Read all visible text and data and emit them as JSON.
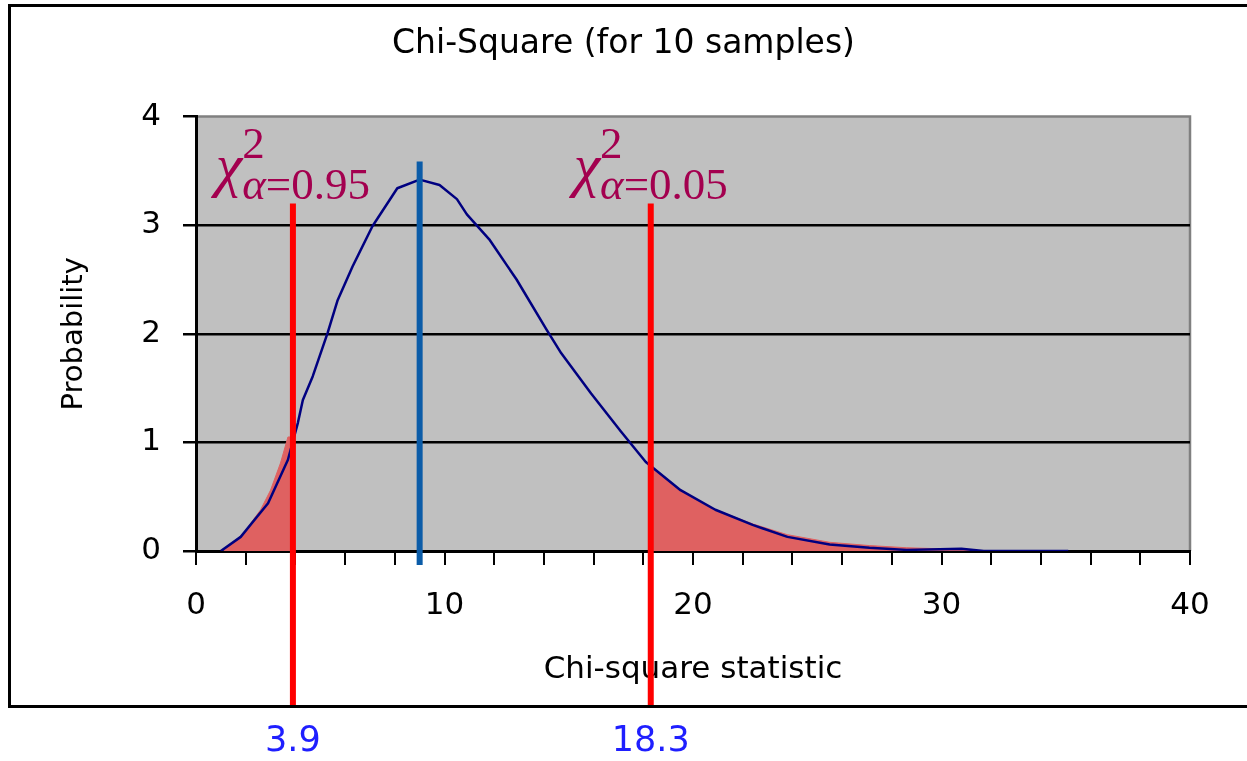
{
  "chart_data": {
    "type": "line",
    "title": "Chi-Square (for 10 samples)",
    "xlabel": "Chi-square statistic",
    "ylabel": "Probability",
    "series": [
      {
        "type": "area",
        "color": "#df6161",
        "x": [
          1.1,
          1.9,
          2.6,
          3,
          3.4,
          3.7,
          3.9
        ],
        "values": [
          0,
          0.16,
          0.38,
          0.56,
          0.81,
          1.05,
          1.05
        ]
      },
      {
        "type": "area",
        "color": "#df6161",
        "x": [
          18.2,
          19.5,
          20.9,
          22.4,
          23.8,
          25.5,
          27.1,
          28.6,
          30,
          31.5
        ],
        "values": [
          0.8,
          0.56,
          0.38,
          0.25,
          0.15,
          0.08,
          0.05,
          0.03,
          0.02,
          0
        ]
      },
      {
        "type": "line",
        "color": "#000080",
        "x": [
          1,
          1.8,
          2.9,
          3.7,
          4.1,
          4.3,
          4.7,
          5.3,
          5.7,
          6.3,
          7.1,
          8.1,
          9,
          9.8,
          10.5,
          10.9,
          11.8,
          12.9,
          14.1,
          14.7,
          15.9,
          17.1,
          18.1,
          19.5,
          20.9,
          22.4,
          23.8,
          25.5,
          27.1,
          28.6,
          30.8,
          31.7,
          35.1
        ],
        "values": [
          0,
          0.13,
          0.44,
          0.84,
          1.18,
          1.39,
          1.61,
          2.01,
          2.31,
          2.62,
          2.99,
          3.34,
          3.42,
          3.37,
          3.24,
          3.1,
          2.87,
          2.5,
          2.04,
          1.82,
          1.45,
          1.1,
          0.82,
          0.56,
          0.38,
          0.24,
          0.13,
          0.06,
          0.03,
          0.01,
          0.02,
          0,
          0
        ]
      }
    ],
    "xlim": [
      0,
      40
    ],
    "xticks": [
      0,
      {
        "value": 2,
        "label": null
      },
      {
        "value": 4,
        "label": null
      },
      {
        "value": 6,
        "label": null
      },
      {
        "value": 8,
        "label": null
      },
      10,
      {
        "value": 12,
        "label": null
      },
      {
        "value": 14,
        "label": null
      },
      {
        "value": 16,
        "label": null
      },
      {
        "value": 18,
        "label": null
      },
      20,
      {
        "value": 22,
        "label": null
      },
      {
        "value": 24,
        "label": null
      },
      {
        "value": 26,
        "label": null
      },
      {
        "value": 28,
        "label": null
      },
      30,
      {
        "value": 32,
        "label": null
      },
      {
        "value": 34,
        "label": null
      },
      {
        "value": 36,
        "label": null
      },
      {
        "value": 38,
        "label": null
      },
      40
    ],
    "ylim": [
      0,
      4
    ],
    "yticks": [
      0,
      1,
      2,
      3,
      4
    ],
    "grid": "y",
    "ref_lines": [
      {
        "axis": "x",
        "value": 3.9,
        "label": "3.9",
        "color": "#ff0000"
      },
      {
        "axis": "x",
        "value": 18.3,
        "label": "18.3",
        "color": "#ff0000"
      },
      {
        "axis": "x",
        "value": 9,
        "color": "#0b5ca8"
      }
    ],
    "annotations": [
      {
        "text": "χ$^{2}$$_{α=0.95}$",
        "x": 3.9,
        "y": 3.2
      },
      {
        "text": "χ$^{2}$$_{α=0.05}$",
        "x": 18.3,
        "y": 3.2
      }
    ]
  }
}
